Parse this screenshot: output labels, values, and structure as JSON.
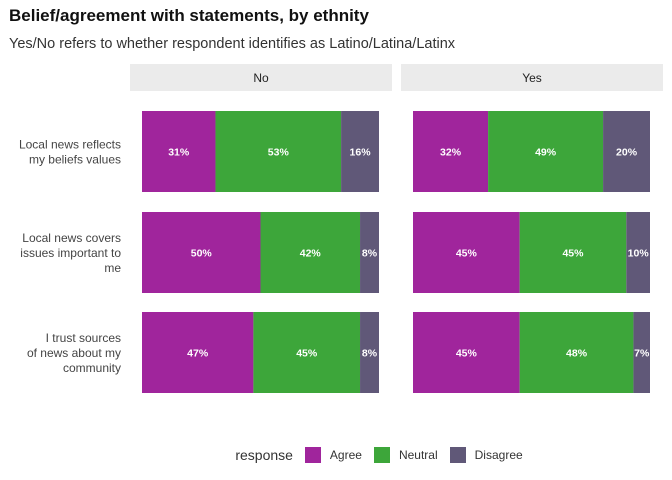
{
  "chart_data": {
    "type": "bar",
    "orientation": "horizontal",
    "stacked": true,
    "title": "Belief/agreement with statements, by ethnity",
    "subtitle": "Yes/No refers to whether respondent identifies as Latino/Latina/Latinx",
    "facets": [
      "No",
      "Yes"
    ],
    "categories": [
      [
        "Local news reflects",
        "my beliefs values"
      ],
      [
        "Local news covers",
        "issues important to",
        "me"
      ],
      [
        "I trust sources",
        "of news about my",
        "community"
      ]
    ],
    "legend_title": "response",
    "legend_position": "bottom",
    "series": [
      {
        "name": "Agree",
        "color": "#a0259c",
        "values": {
          "No": [
            31,
            50,
            47
          ],
          "Yes": [
            32,
            45,
            45
          ]
        }
      },
      {
        "name": "Neutral",
        "color": "#3da63a",
        "values": {
          "No": [
            53,
            42,
            45
          ],
          "Yes": [
            49,
            45,
            48
          ]
        }
      },
      {
        "name": "Disagree",
        "color": "#605878",
        "values": {
          "No": [
            16,
            8,
            8
          ],
          "Yes": [
            20,
            10,
            7
          ]
        }
      }
    ],
    "value_suffix": "%",
    "xlim": [
      0,
      100
    ],
    "grid": false,
    "strip_color": "#ebebeb"
  }
}
